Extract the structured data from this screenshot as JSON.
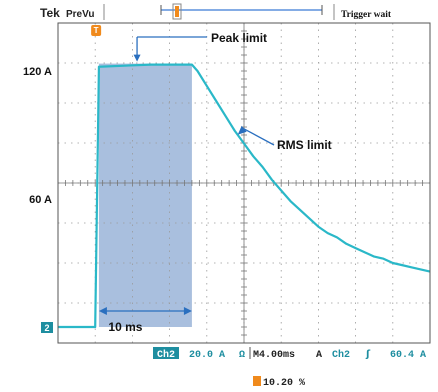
{
  "header": {
    "brand": "Tek",
    "mode": "PreVu",
    "trigger_status": "Trigger wait"
  },
  "chart_data": {
    "type": "line",
    "title": "",
    "xlabel": "",
    "ylabel": "",
    "x_unit": "ms",
    "y_unit": "A",
    "xlim": [
      0,
      40
    ],
    "ylim": [
      -7.5,
      142.5
    ],
    "y_tick_labels": [
      {
        "value": 120,
        "text": "120 A"
      },
      {
        "value": 60,
        "text": "60 A"
      }
    ],
    "grid": true,
    "series": [
      {
        "name": "",
        "color": "#2ab8c8",
        "x": [
          0,
          4.0,
          4.4,
          10.0,
          14.4,
          15.0,
          16.0,
          17.0,
          18.0,
          19.0,
          20.0,
          21.0,
          22.0,
          23.0,
          24.0,
          25.0,
          26.0,
          27.0,
          28.0,
          29.0,
          30.0,
          31.0,
          32.0,
          33.0,
          34.0,
          35.0,
          36.0,
          37.0,
          38.0,
          39.0,
          40.0
        ],
        "y": [
          0,
          0,
          122,
          123,
          123,
          120,
          113,
          106,
          99,
          92,
          86,
          80,
          75,
          69,
          64,
          59,
          55,
          51,
          47,
          44,
          42,
          39,
          37,
          35,
          33,
          32,
          30,
          29,
          28,
          27,
          26
        ]
      }
    ],
    "shaded_interval": {
      "x_start": 4.4,
      "x_end": 14.4,
      "color": "#a9bfde"
    },
    "annotations": [
      {
        "text": "Peak limit",
        "x": 8.5,
        "y": 123
      },
      {
        "text": "RMS limit",
        "x": 19.0,
        "y": 92
      }
    ],
    "duration_label": "10 ms",
    "ground_marker": "2",
    "trigger_marker": "T",
    "status_bar": {
      "channel": "Ch2",
      "volts_div": "20.0 A",
      "ohm_symbol": "Ω",
      "time_div": "M4.00ms",
      "acq": "A",
      "trigger_channel": "Ch2",
      "slope_symbol": "ʃ",
      "trigger_level": "60.4 A"
    },
    "trigger_position": "10.20 %"
  }
}
